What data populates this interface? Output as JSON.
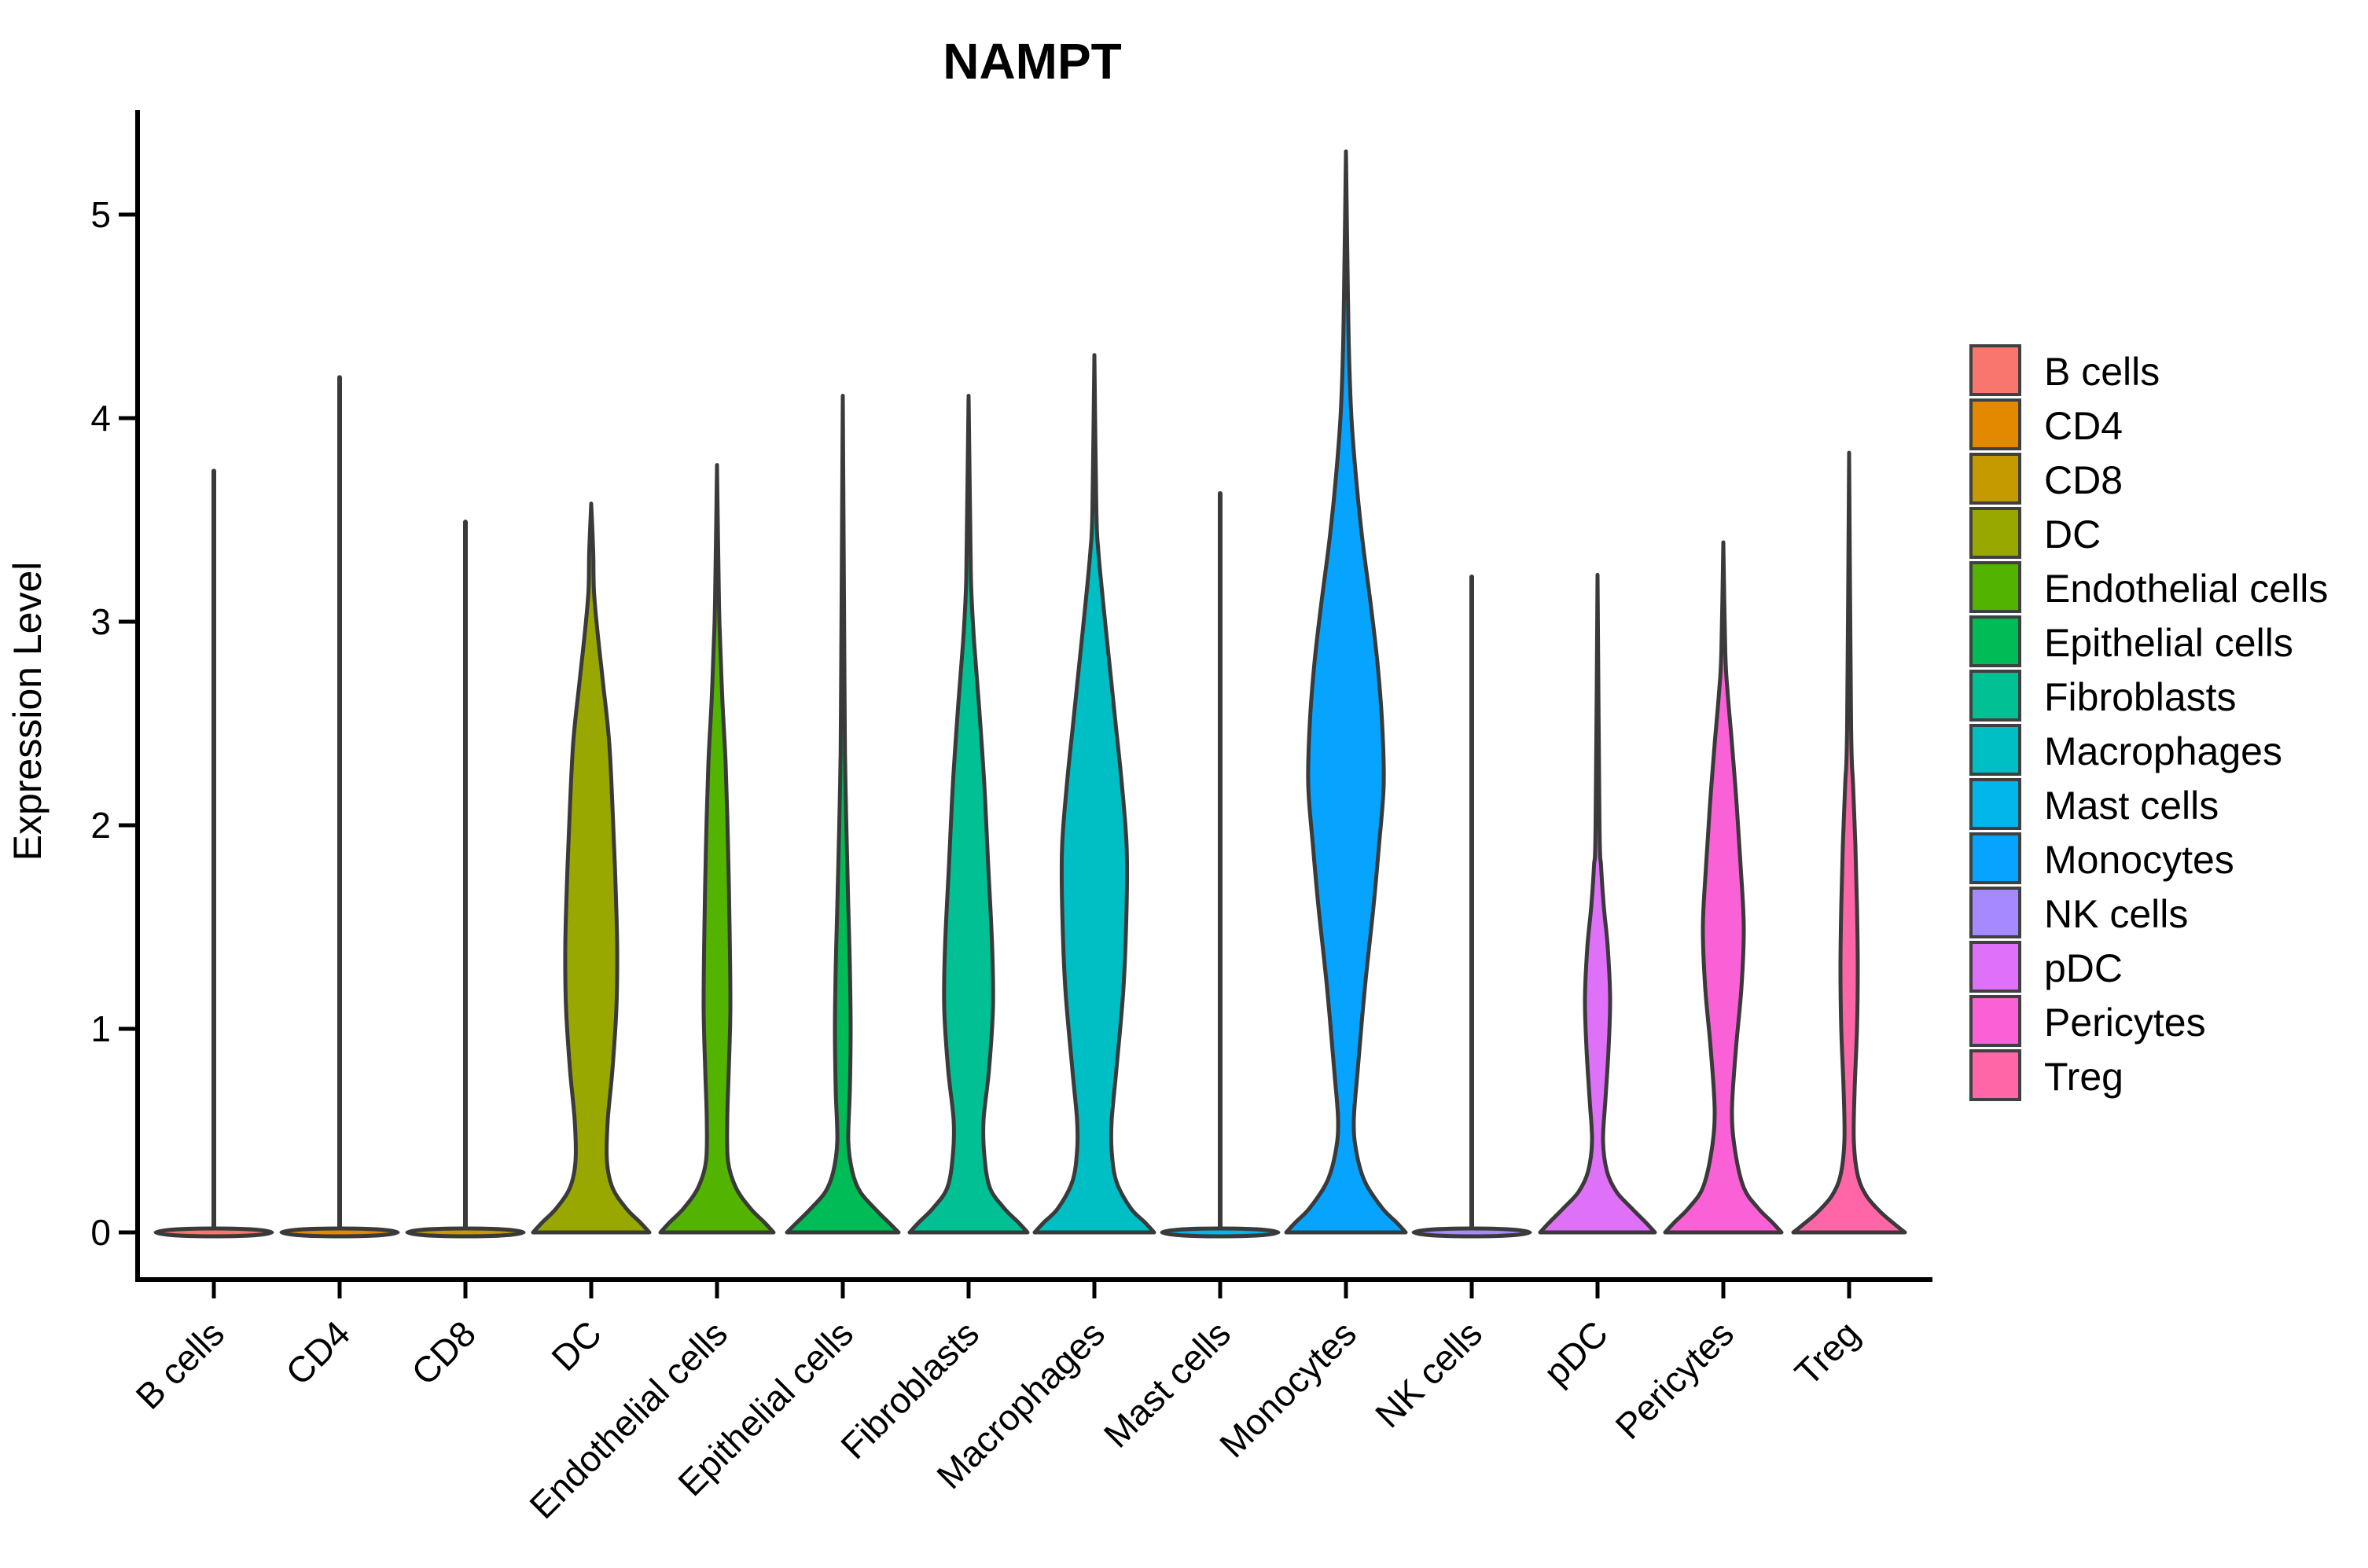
{
  "chart_data": {
    "type": "violin",
    "title": "NAMPT",
    "ylabel": "Expression Level",
    "xlabel": "",
    "ylim": [
      0,
      5.5
    ],
    "yticks": [
      0,
      1,
      2,
      3,
      4,
      5
    ],
    "grid": "off",
    "legend_position": "right",
    "categories": [
      "B cells",
      "CD4",
      "CD8",
      "DC",
      "Endothelial cells",
      "Epithelial cells",
      "Fibroblasts",
      "Macrophages",
      "Mast cells",
      "Monocytes",
      "NK cells",
      "pDC",
      "Pericytes",
      "Treg"
    ],
    "outline_color": "#3A3A3A",
    "axis_color": "#000000",
    "series": [
      {
        "name": "B cells",
        "color": "#F8766D",
        "shape": "spike",
        "max_expression": 3.74,
        "profile": [
          [
            0,
            74
          ]
        ]
      },
      {
        "name": "CD4",
        "color": "#E38900",
        "shape": "spike",
        "max_expression": 4.2,
        "profile": [
          [
            0,
            74
          ]
        ]
      },
      {
        "name": "CD8",
        "color": "#C49A00",
        "shape": "spike",
        "max_expression": 3.49,
        "profile": [
          [
            0,
            74
          ]
        ]
      },
      {
        "name": "DC",
        "color": "#99A800",
        "shape": "bulge",
        "max_expression": 3.58,
        "profile": [
          [
            0,
            74
          ],
          [
            0.05,
            62
          ],
          [
            0.12,
            44
          ],
          [
            0.22,
            27
          ],
          [
            0.35,
            20
          ],
          [
            0.55,
            21
          ],
          [
            0.8,
            27
          ],
          [
            1.1,
            32
          ],
          [
            1.4,
            33
          ],
          [
            1.7,
            31
          ],
          [
            2.0,
            28
          ],
          [
            2.4,
            23
          ],
          [
            2.7,
            15
          ],
          [
            2.95,
            8
          ],
          [
            3.15,
            3.5
          ],
          [
            3.35,
            2.5
          ],
          [
            3.58,
            0
          ]
        ]
      },
      {
        "name": "Endothelial cells",
        "color": "#53B400",
        "shape": "bulge",
        "max_expression": 3.77,
        "profile": [
          [
            0,
            72
          ],
          [
            0.05,
            60
          ],
          [
            0.12,
            42
          ],
          [
            0.22,
            24
          ],
          [
            0.35,
            14
          ],
          [
            0.55,
            13
          ],
          [
            0.8,
            15
          ],
          [
            1.1,
            17
          ],
          [
            1.5,
            16
          ],
          [
            1.9,
            14
          ],
          [
            2.3,
            11
          ],
          [
            2.6,
            7
          ],
          [
            2.9,
            4
          ],
          [
            3.1,
            2.5
          ],
          [
            3.77,
            0
          ]
        ]
      },
      {
        "name": "Epithelial cells",
        "color": "#00BC56",
        "shape": "bulge",
        "max_expression": 4.11,
        "profile": [
          [
            0,
            71
          ],
          [
            0.05,
            58
          ],
          [
            0.12,
            40
          ],
          [
            0.2,
            22
          ],
          [
            0.3,
            12
          ],
          [
            0.45,
            7
          ],
          [
            0.7,
            9
          ],
          [
            1.0,
            10
          ],
          [
            1.3,
            9
          ],
          [
            1.6,
            7
          ],
          [
            2.0,
            4.5
          ],
          [
            2.3,
            3
          ],
          [
            2.6,
            2.3
          ],
          [
            4.11,
            0
          ]
        ]
      },
      {
        "name": "Fibroblasts",
        "color": "#00C094",
        "shape": "bulge",
        "max_expression": 4.11,
        "profile": [
          [
            0,
            75
          ],
          [
            0.05,
            63
          ],
          [
            0.12,
            45
          ],
          [
            0.22,
            27
          ],
          [
            0.38,
            20
          ],
          [
            0.55,
            19
          ],
          [
            0.8,
            26
          ],
          [
            1.1,
            31
          ],
          [
            1.4,
            30
          ],
          [
            1.8,
            25
          ],
          [
            2.2,
            20
          ],
          [
            2.6,
            13
          ],
          [
            2.9,
            7
          ],
          [
            3.15,
            3.5
          ],
          [
            3.35,
            2.5
          ],
          [
            4.11,
            0
          ]
        ]
      },
      {
        "name": "Macrophages",
        "color": "#00BFC4",
        "shape": "bulge",
        "max_expression": 4.31,
        "profile": [
          [
            0,
            76
          ],
          [
            0.05,
            64
          ],
          [
            0.12,
            46
          ],
          [
            0.25,
            28
          ],
          [
            0.4,
            22
          ],
          [
            0.55,
            22
          ],
          [
            0.8,
            28
          ],
          [
            1.2,
            37
          ],
          [
            1.6,
            41
          ],
          [
            1.9,
            41
          ],
          [
            2.2,
            35
          ],
          [
            2.5,
            27
          ],
          [
            2.8,
            19
          ],
          [
            3.1,
            11
          ],
          [
            3.35,
            5
          ],
          [
            3.55,
            2.5
          ],
          [
            4.31,
            0
          ]
        ]
      },
      {
        "name": "Mast cells",
        "color": "#00B6EB",
        "shape": "spike",
        "max_expression": 3.63,
        "profile": [
          [
            0,
            74
          ]
        ]
      },
      {
        "name": "Monocytes",
        "color": "#06A4FF",
        "shape": "bulge",
        "max_expression": 5.31,
        "profile": [
          [
            0,
            76
          ],
          [
            0.05,
            64
          ],
          [
            0.12,
            46
          ],
          [
            0.25,
            24
          ],
          [
            0.4,
            13
          ],
          [
            0.55,
            10
          ],
          [
            0.8,
            15
          ],
          [
            1.2,
            24
          ],
          [
            1.6,
            35
          ],
          [
            1.9,
            42
          ],
          [
            2.2,
            48
          ],
          [
            2.5,
            46
          ],
          [
            2.8,
            40
          ],
          [
            3.1,
            31
          ],
          [
            3.4,
            21
          ],
          [
            3.7,
            13
          ],
          [
            4.0,
            7
          ],
          [
            4.3,
            4
          ],
          [
            4.6,
            2.5
          ],
          [
            5.31,
            0
          ]
        ]
      },
      {
        "name": "NK cells",
        "color": "#A58AFF",
        "shape": "spike",
        "max_expression": 3.22,
        "profile": [
          [
            0,
            74
          ]
        ]
      },
      {
        "name": "pDC",
        "color": "#DF70F8",
        "shape": "bulge",
        "max_expression": 3.23,
        "profile": [
          [
            0,
            73
          ],
          [
            0.05,
            61
          ],
          [
            0.12,
            43
          ],
          [
            0.2,
            24
          ],
          [
            0.3,
            12
          ],
          [
            0.45,
            7
          ],
          [
            0.65,
            10
          ],
          [
            0.9,
            14
          ],
          [
            1.15,
            16
          ],
          [
            1.4,
            13
          ],
          [
            1.6,
            8
          ],
          [
            1.8,
            4.5
          ],
          [
            2.0,
            2.5
          ],
          [
            3.23,
            0
          ]
        ]
      },
      {
        "name": "Pericytes",
        "color": "#FB61D7",
        "shape": "bulge",
        "max_expression": 3.39,
        "profile": [
          [
            0,
            74
          ],
          [
            0.05,
            62
          ],
          [
            0.12,
            44
          ],
          [
            0.22,
            26
          ],
          [
            0.4,
            15
          ],
          [
            0.6,
            11
          ],
          [
            0.9,
            16
          ],
          [
            1.2,
            23
          ],
          [
            1.5,
            26
          ],
          [
            1.8,
            22
          ],
          [
            2.1,
            17
          ],
          [
            2.4,
            11
          ],
          [
            2.65,
            5.5
          ],
          [
            2.85,
            2.5
          ],
          [
            3.39,
            0
          ]
        ]
      },
      {
        "name": "Treg",
        "color": "#FF66A8",
        "shape": "bulge",
        "max_expression": 3.83,
        "profile": [
          [
            0,
            71
          ],
          [
            0.04,
            58
          ],
          [
            0.1,
            40
          ],
          [
            0.18,
            22
          ],
          [
            0.28,
            11
          ],
          [
            0.45,
            6
          ],
          [
            0.7,
            7
          ],
          [
            1.0,
            10
          ],
          [
            1.3,
            11
          ],
          [
            1.6,
            10
          ],
          [
            1.9,
            8
          ],
          [
            2.2,
            5
          ],
          [
            2.5,
            2.5
          ],
          [
            3.83,
            0
          ]
        ]
      }
    ],
    "legend": {
      "entries": [
        "B cells",
        "CD4",
        "CD8",
        "DC",
        "Endothelial cells",
        "Epithelial cells",
        "Fibroblasts",
        "Macrophages",
        "Mast cells",
        "Monocytes",
        "NK cells",
        "pDC",
        "Pericytes",
        "Treg"
      ]
    }
  }
}
